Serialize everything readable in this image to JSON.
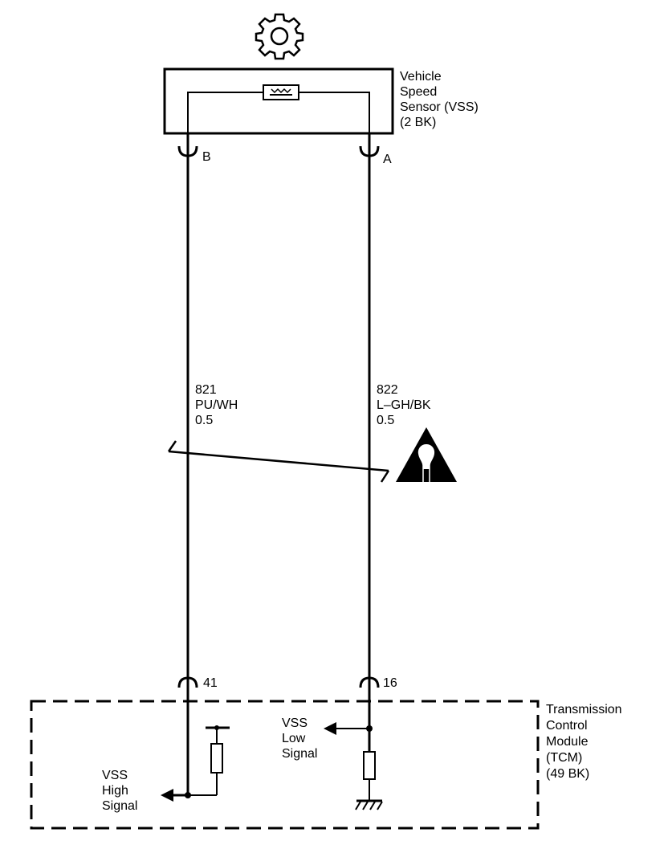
{
  "sensor": {
    "name_lines": [
      "Vehicle",
      "Speed",
      "Sensor (VSS)",
      "(2 BK)"
    ],
    "pin_b": "B",
    "pin_a": "A"
  },
  "wires": {
    "left": {
      "circuit": "821",
      "color": "PU/WH",
      "gauge": "0.5"
    },
    "right": {
      "circuit": "822",
      "color": "L–GH/BK",
      "gauge": "0.5"
    }
  },
  "module": {
    "name_lines": [
      "Transmission",
      "Control",
      "Module",
      "(TCM)",
      "(49 BK)"
    ],
    "pin_left": "41",
    "pin_right": "16",
    "high_signal_lines": [
      "VSS",
      "High",
      "Signal"
    ],
    "low_signal_lines": [
      "VSS",
      "Low",
      "Signal"
    ]
  },
  "icons": {
    "gear": "gear-icon",
    "warning": "twisted-pair-caution-icon",
    "ground": "ground-icon"
  }
}
